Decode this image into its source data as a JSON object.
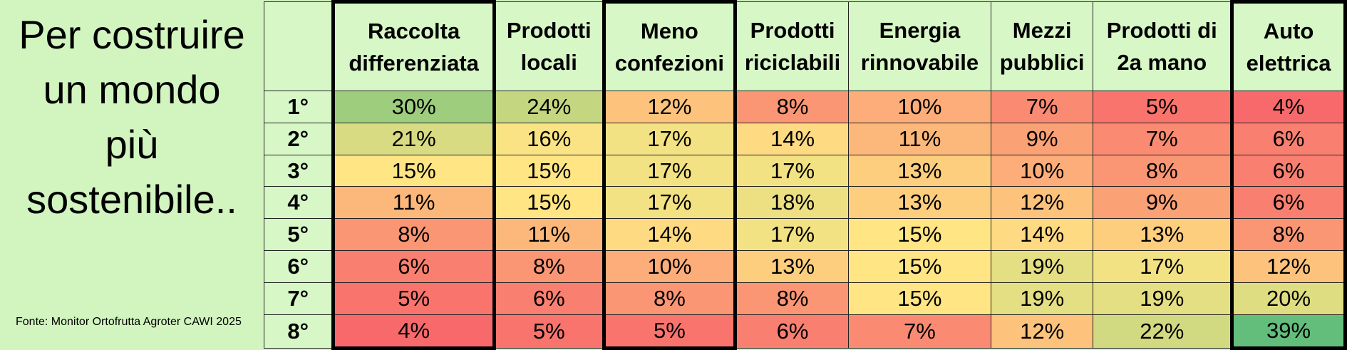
{
  "page": {
    "title_lines": [
      "Per costruire",
      "un mondo",
      "più",
      "sostenibile.."
    ],
    "source": "Fonte: Monitor Ortofrutta Agroter CAWI 2025"
  },
  "chart_data": {
    "type": "table",
    "columns": [
      {
        "label": "Raccolta differenziata",
        "highlight": true
      },
      {
        "label": "Prodotti locali",
        "highlight": false
      },
      {
        "label": "Meno confezioni",
        "highlight": true
      },
      {
        "label": "Prodotti riciclabili",
        "highlight": false
      },
      {
        "label": "Energia rinnovabile",
        "highlight": false
      },
      {
        "label": "Mezzi pubblici",
        "highlight": false
      },
      {
        "label": "Prodotti di 2a mano",
        "highlight": false
      },
      {
        "label": "Auto elettrica",
        "highlight": true
      }
    ],
    "rows": [
      {
        "rank": "1°",
        "values": [
          30,
          24,
          12,
          8,
          10,
          7,
          5,
          4
        ]
      },
      {
        "rank": "2°",
        "values": [
          21,
          16,
          17,
          14,
          11,
          9,
          7,
          6
        ]
      },
      {
        "rank": "3°",
        "values": [
          15,
          15,
          17,
          17,
          13,
          10,
          8,
          6
        ]
      },
      {
        "rank": "4°",
        "values": [
          11,
          15,
          17,
          18,
          13,
          12,
          9,
          6
        ]
      },
      {
        "rank": "5°",
        "values": [
          8,
          11,
          14,
          17,
          15,
          14,
          13,
          8
        ]
      },
      {
        "rank": "6°",
        "values": [
          6,
          8,
          10,
          13,
          15,
          19,
          17,
          12
        ]
      },
      {
        "rank": "7°",
        "values": [
          5,
          6,
          8,
          8,
          15,
          19,
          19,
          20
        ]
      },
      {
        "rank": "8°",
        "values": [
          4,
          5,
          5,
          6,
          7,
          12,
          22,
          39
        ]
      }
    ],
    "unit": "%",
    "color_scale": {
      "low": "#f8696b",
      "mid": "#ffe584",
      "high": "#63be7b"
    }
  }
}
